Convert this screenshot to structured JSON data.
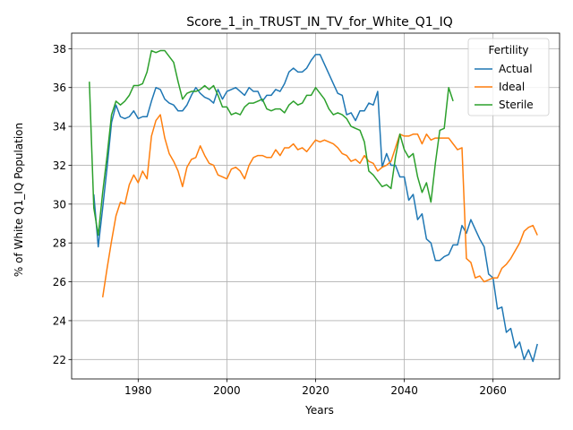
{
  "chart_data": {
    "type": "line",
    "title": "Score_1_in_TRUST_IN_TV_for_White_Q1_IQ",
    "xlabel": "Years",
    "ylabel": "% of White Q1_IQ Population",
    "xlim": [
      1965,
      2075
    ],
    "ylim": [
      21,
      38.8
    ],
    "xticks": [
      1980,
      2000,
      2020,
      2040,
      2060
    ],
    "yticks": [
      22,
      24,
      26,
      28,
      30,
      32,
      34,
      36,
      38
    ],
    "grid": true,
    "legend": {
      "title": "Fertility",
      "placement": "top-right"
    },
    "series": [
      {
        "name": "Actual",
        "color": "#1f77b4",
        "x": [
          1970,
          1971,
          1972,
          1973,
          1974,
          1975,
          1976,
          1977,
          1978,
          1979,
          1980,
          1981,
          1982,
          1983,
          1984,
          1985,
          1986,
          1987,
          1988,
          1989,
          1990,
          1991,
          1992,
          1993,
          1994,
          1995,
          1996,
          1997,
          1998,
          1999,
          2000,
          2001,
          2002,
          2003,
          2004,
          2005,
          2006,
          2007,
          2008,
          2009,
          2010,
          2011,
          2012,
          2013,
          2014,
          2015,
          2016,
          2017,
          2018,
          2019,
          2020,
          2021,
          2022,
          2023,
          2024,
          2025,
          2026,
          2027,
          2028,
          2029,
          2030,
          2031,
          2032,
          2033,
          2034,
          2035,
          2036,
          2037,
          2038,
          2039,
          2040,
          2041,
          2042,
          2043,
          2044,
          2045,
          2046,
          2047,
          2048,
          2049,
          2050,
          2051,
          2052,
          2053,
          2054,
          2055,
          2056,
          2057,
          2058,
          2059,
          2060,
          2061,
          2062,
          2063,
          2064,
          2065,
          2066,
          2067,
          2068,
          2069,
          2070
        ],
        "y": [
          30.5,
          27.8,
          29.8,
          31.9,
          34.2,
          35.1,
          34.5,
          34.4,
          34.5,
          34.8,
          34.4,
          34.5,
          34.5,
          35.3,
          36.0,
          35.9,
          35.4,
          35.2,
          35.1,
          34.8,
          34.8,
          35.1,
          35.6,
          36.0,
          35.7,
          35.5,
          35.4,
          35.2,
          35.9,
          35.4,
          35.8,
          35.9,
          36.0,
          35.8,
          35.6,
          36.0,
          35.8,
          35.8,
          35.3,
          35.6,
          35.6,
          35.9,
          35.8,
          36.2,
          36.8,
          37.0,
          36.8,
          36.8,
          37.0,
          37.4,
          37.7,
          37.7,
          37.2,
          36.7,
          36.2,
          35.7,
          35.6,
          34.6,
          34.7,
          34.3,
          34.8,
          34.8,
          35.2,
          35.1,
          35.8,
          31.9,
          32.6,
          32.0,
          32.0,
          31.4,
          31.4,
          30.2,
          30.5,
          29.2,
          29.5,
          28.2,
          28.0,
          27.1,
          27.1,
          27.3,
          27.4,
          27.9,
          27.9,
          28.9,
          28.5,
          29.2,
          28.7,
          28.2,
          27.8,
          26.4,
          26.2,
          24.6,
          24.7,
          23.4,
          23.6,
          22.6,
          22.9,
          22.0,
          22.5,
          21.9,
          22.8
        ]
      },
      {
        "name": "Ideal",
        "color": "#ff7f0e",
        "x": [
          1972,
          1973,
          1974,
          1975,
          1976,
          1977,
          1978,
          1979,
          1980,
          1981,
          1982,
          1983,
          1984,
          1985,
          1986,
          1987,
          1988,
          1989,
          1990,
          1991,
          1992,
          1993,
          1994,
          1995,
          1996,
          1997,
          1998,
          1999,
          2000,
          2001,
          2002,
          2003,
          2004,
          2005,
          2006,
          2007,
          2008,
          2009,
          2010,
          2011,
          2012,
          2013,
          2014,
          2015,
          2016,
          2017,
          2018,
          2019,
          2020,
          2021,
          2022,
          2023,
          2024,
          2025,
          2026,
          2027,
          2028,
          2029,
          2030,
          2031,
          2032,
          2033,
          2034,
          2035,
          2036,
          2037,
          2038,
          2039,
          2040,
          2041,
          2042,
          2043,
          2044,
          2045,
          2046,
          2047,
          2048,
          2049,
          2050,
          2051,
          2052,
          2053,
          2054,
          2055,
          2056,
          2057,
          2058,
          2059,
          2060,
          2061,
          2062,
          2063,
          2064,
          2065,
          2066,
          2067,
          2068,
          2069,
          2070
        ],
        "y": [
          25.2,
          26.7,
          28.1,
          29.4,
          30.1,
          30.0,
          31.0,
          31.5,
          31.1,
          31.7,
          31.3,
          33.5,
          34.3,
          34.6,
          33.4,
          32.6,
          32.2,
          31.7,
          30.9,
          31.9,
          32.3,
          32.4,
          33.0,
          32.5,
          32.1,
          32.0,
          31.5,
          31.4,
          31.3,
          31.8,
          31.9,
          31.7,
          31.3,
          32.0,
          32.4,
          32.5,
          32.5,
          32.4,
          32.4,
          32.8,
          32.5,
          32.9,
          32.9,
          33.1,
          32.8,
          32.9,
          32.7,
          33.0,
          33.3,
          33.2,
          33.3,
          33.2,
          33.1,
          32.9,
          32.6,
          32.5,
          32.2,
          32.3,
          32.1,
          32.5,
          32.2,
          32.1,
          31.7,
          31.9,
          32.0,
          32.2,
          32.9,
          33.6,
          33.5,
          33.5,
          33.6,
          33.6,
          33.1,
          33.6,
          33.3,
          33.4,
          33.4,
          33.4,
          33.4,
          33.1,
          32.8,
          32.9,
          27.2,
          27.0,
          26.2,
          26.3,
          26.0,
          26.1,
          26.2,
          26.2,
          26.7,
          26.9,
          27.2,
          27.6,
          28.0,
          28.6,
          28.8,
          28.9,
          28.4
        ]
      },
      {
        "name": "Sterile",
        "color": "#2ca02c",
        "x": [
          1969,
          1970,
          1971,
          1972,
          1973,
          1974,
          1975,
          1976,
          1977,
          1978,
          1979,
          1980,
          1981,
          1982,
          1983,
          1984,
          1985,
          1986,
          1987,
          1988,
          1989,
          1990,
          1991,
          1992,
          1993,
          1994,
          1995,
          1996,
          1997,
          1998,
          1999,
          2000,
          2001,
          2002,
          2003,
          2004,
          2005,
          2006,
          2007,
          2008,
          2009,
          2010,
          2011,
          2012,
          2013,
          2014,
          2015,
          2016,
          2017,
          2018,
          2019,
          2020,
          2021,
          2022,
          2023,
          2024,
          2025,
          2026,
          2027,
          2028,
          2029,
          2030,
          2031,
          2032,
          2033,
          2034,
          2035,
          2036,
          2037,
          2038,
          2039,
          2040,
          2041,
          2042,
          2043,
          2044,
          2045,
          2046,
          2047,
          2048,
          2049,
          2050,
          2051
        ],
        "y": [
          36.3,
          29.8,
          28.4,
          30.6,
          32.5,
          34.6,
          35.3,
          35.1,
          35.3,
          35.6,
          36.1,
          36.1,
          36.2,
          36.8,
          37.9,
          37.8,
          37.9,
          37.9,
          37.6,
          37.3,
          36.3,
          35.4,
          35.7,
          35.8,
          35.8,
          35.9,
          36.1,
          35.9,
          36.1,
          35.6,
          35.0,
          35.0,
          34.6,
          34.7,
          34.6,
          35.0,
          35.2,
          35.2,
          35.3,
          35.4,
          34.9,
          34.8,
          34.9,
          34.9,
          34.7,
          35.1,
          35.3,
          35.1,
          35.2,
          35.6,
          35.6,
          36.0,
          35.7,
          35.4,
          34.9,
          34.6,
          34.7,
          34.6,
          34.4,
          34.0,
          33.9,
          33.8,
          33.2,
          31.7,
          31.5,
          31.2,
          30.9,
          31.0,
          30.8,
          32.4,
          33.6,
          32.8,
          32.4,
          32.6,
          31.4,
          30.6,
          31.1,
          30.1,
          32.1,
          33.8,
          33.9,
          36.0,
          35.3
        ]
      }
    ]
  }
}
